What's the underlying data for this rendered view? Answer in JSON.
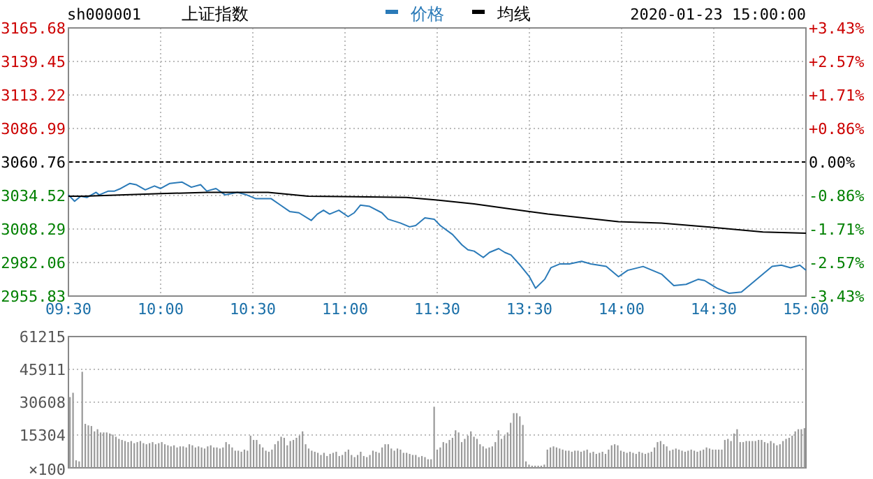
{
  "chart_data": [
    {
      "type": "line",
      "title": "上证指数",
      "annotations": [
        "sh000001",
        "2020-01-23 15:00:00"
      ],
      "categories": [
        "09:30",
        null,
        null,
        null,
        null,
        null,
        null,
        null,
        null,
        null,
        null,
        null,
        null,
        null,
        null,
        null,
        null,
        null,
        null,
        null,
        null,
        null,
        null,
        null,
        null,
        null,
        null,
        null,
        null,
        null,
        "10:00",
        null,
        null,
        null,
        null,
        null,
        null,
        null,
        null,
        null,
        null,
        null,
        null,
        null,
        null,
        null,
        null,
        null,
        null,
        null,
        null,
        null,
        null,
        null,
        null,
        null,
        null,
        null,
        null,
        null,
        "10:30",
        null,
        null,
        null,
        null,
        null,
        null,
        null,
        null,
        null,
        null,
        null,
        null,
        null,
        null,
        null,
        null,
        null,
        null,
        null,
        null,
        null,
        null,
        null,
        null,
        null,
        null,
        null,
        null,
        null,
        "11:00",
        null,
        null,
        null,
        null,
        null,
        null,
        null,
        null,
        null,
        null,
        null,
        null,
        null,
        null,
        null,
        null,
        null,
        null,
        null,
        null,
        null,
        null,
        null,
        null,
        null,
        null,
        null,
        null,
        null,
        "11:30",
        null,
        null,
        null,
        null,
        null,
        null,
        null,
        null,
        null,
        null,
        null,
        null,
        null,
        null,
        null,
        null,
        null,
        null,
        null,
        null,
        null,
        null,
        null,
        null,
        null,
        null,
        null,
        null,
        null,
        "13:30",
        null,
        null,
        null,
        null,
        null,
        null,
        null,
        null,
        null,
        null,
        null,
        null,
        null,
        null,
        null,
        null,
        null,
        null,
        null,
        null,
        null,
        null,
        null,
        null,
        null,
        null,
        null,
        null,
        null,
        "14:00",
        null,
        null,
        null,
        null,
        null,
        null,
        null,
        null,
        null,
        null,
        null,
        null,
        null,
        null,
        null,
        null,
        null,
        null,
        null,
        null,
        null,
        null,
        null,
        null,
        null,
        null,
        null,
        null,
        null,
        "14:30",
        null,
        null,
        null,
        null,
        null,
        null,
        null,
        null,
        null,
        null,
        null,
        null,
        null,
        null,
        null,
        null,
        null,
        null,
        null,
        null,
        null,
        null,
        null,
        null,
        null,
        null,
        null,
        null,
        null,
        "15:00"
      ],
      "ylim": [
        2955.83,
        3165.68
      ],
      "yticks": [
        2955.83,
        2982.06,
        3008.29,
        3034.52,
        3060.76,
        3086.99,
        3113.22,
        3139.45,
        3165.68
      ],
      "y2lim": [
        -3.43,
        3.43
      ],
      "y2ticks": [
        {
          "value": -3.43,
          "label": "-3.43%"
        },
        {
          "value": -2.57,
          "label": "-2.57%"
        },
        {
          "value": -1.71,
          "label": "-1.71%"
        },
        {
          "value": -0.86,
          "label": "-0.86%"
        },
        {
          "value": 0,
          "label": "0.00%"
        },
        {
          "value": 0.86,
          "label": "+0.86%"
        },
        {
          "value": 1.71,
          "label": "+1.71%"
        },
        {
          "value": 2.57,
          "label": "+2.57%"
        },
        {
          "value": 3.43,
          "label": "+3.43%"
        }
      ],
      "ref_lines": [
        {
          "axis": "y",
          "value": 3060.76,
          "color": "#000000",
          "line_style": "dashed"
        }
      ],
      "grid": true,
      "legend": "top",
      "series": [
        {
          "name": "价格",
          "color": "#2a7ab8",
          "values": [
            3035,
            null,
            3030,
            null,
            3034,
            null,
            3033,
            null,
            null,
            3037,
            3035,
            null,
            null,
            3038,
            null,
            3038,
            null,
            3040,
            null,
            null,
            3044,
            null,
            3043,
            null,
            null,
            3039,
            null,
            null,
            3042,
            null,
            3040,
            null,
            null,
            3044,
            null,
            null,
            null,
            3045,
            null,
            null,
            3041,
            null,
            null,
            3043,
            null,
            3038,
            null,
            null,
            3040,
            null,
            null,
            3035,
            null,
            null,
            null,
            3037,
            null,
            null,
            3035,
            null,
            null,
            3032,
            null,
            null,
            null,
            null,
            3032,
            null,
            null,
            3027,
            null,
            null,
            3022,
            null,
            null,
            3021,
            null,
            null,
            null,
            3015,
            null,
            3020,
            null,
            3023,
            null,
            3020,
            null,
            null,
            3023,
            null,
            null,
            3018,
            null,
            3021,
            null,
            3027,
            null,
            null,
            3026,
            null,
            null,
            null,
            3021,
            null,
            3016,
            null,
            null,
            null,
            3013,
            null,
            null,
            3010,
            null,
            3011,
            null,
            null,
            3017,
            null,
            null,
            3016,
            null,
            3011,
            null,
            null,
            null,
            3004,
            null,
            null,
            2996,
            null,
            2992,
            null,
            2991,
            null,
            null,
            2986,
            null,
            2990,
            null,
            null,
            2993,
            null,
            2990,
            null,
            2988,
            null,
            null,
            2980,
            null,
            null,
            2971,
            null,
            2962,
            null,
            null,
            2969,
            null,
            2978,
            null,
            null,
            2981,
            null,
            null,
            2981,
            null,
            null,
            null,
            2983,
            null,
            null,
            2981,
            null,
            null,
            null,
            null,
            2979,
            null,
            null,
            null,
            2971,
            null,
            null,
            2976,
            null,
            null,
            null,
            null,
            2979,
            null,
            null,
            2976,
            null,
            null,
            2973,
            null,
            null,
            null,
            2964,
            null,
            null,
            null,
            2965,
            null,
            null,
            null,
            2969,
            null,
            2968,
            null,
            null,
            null,
            2962,
            null,
            null,
            null,
            2958,
            null,
            null,
            null,
            2959,
            null,
            null,
            2965,
            null,
            null,
            null,
            2973,
            null,
            null,
            2979,
            null,
            null,
            2980,
            null,
            null,
            2978,
            null,
            null,
            2980,
            null,
            2976
          ]
        },
        {
          "name": "均线",
          "color": "#000000",
          "values": [
            3034,
            null,
            null,
            null,
            null,
            3034,
            null,
            null,
            null,
            null,
            null,
            null,
            null,
            null,
            null,
            null,
            null,
            null,
            null,
            null,
            null,
            null,
            null,
            null,
            null,
            null,
            null,
            null,
            null,
            null,
            3036,
            null,
            null,
            null,
            null,
            null,
            null,
            null,
            null,
            null,
            null,
            null,
            null,
            null,
            null,
            3037,
            null,
            null,
            null,
            null,
            null,
            null,
            null,
            null,
            null,
            null,
            null,
            null,
            null,
            null,
            null,
            null,
            null,
            null,
            null,
            3037,
            null,
            null,
            null,
            null,
            null,
            null,
            null,
            null,
            null,
            null,
            null,
            null,
            3034,
            null,
            null,
            null,
            null,
            null,
            null,
            null,
            null,
            null,
            null,
            null,
            null,
            null,
            null,
            null,
            null,
            null,
            null,
            null,
            null,
            null,
            null,
            null,
            null,
            null,
            null,
            null,
            null,
            null,
            null,
            null,
            3033,
            null,
            null,
            null,
            null,
            null,
            null,
            null,
            null,
            null,
            3031,
            null,
            null,
            null,
            null,
            null,
            null,
            null,
            null,
            null,
            null,
            null,
            3028,
            null,
            null,
            null,
            null,
            null,
            null,
            null,
            null,
            null,
            null,
            null,
            null,
            null,
            null,
            null,
            null,
            null,
            3022,
            null,
            null,
            null,
            null,
            null,
            3020,
            null,
            null,
            null,
            null,
            null,
            null,
            null,
            null,
            null,
            null,
            null,
            null,
            null,
            null,
            null,
            null,
            null,
            null,
            null,
            null,
            null,
            null,
            3014,
            null,
            null,
            null,
            null,
            null,
            null,
            null,
            null,
            null,
            null,
            null,
            null,
            null,
            3013,
            null,
            null,
            null,
            null,
            null,
            null,
            null,
            null,
            null,
            null,
            null,
            null,
            null,
            null,
            3010,
            null,
            null,
            null,
            null,
            null,
            null,
            null,
            null,
            null,
            null,
            null,
            null,
            null,
            null,
            null,
            null,
            null,
            3006,
            null,
            null,
            null,
            null,
            null,
            null,
            null,
            null,
            null,
            null,
            null,
            null,
            null,
            3005
          ]
        }
      ]
    },
    {
      "type": "bar",
      "color": "#999999",
      "ylabel": "×100",
      "categories": [
        null,
        null,
        null,
        null,
        null,
        null,
        null,
        null,
        null,
        null,
        null,
        null,
        null,
        null,
        null,
        null,
        null,
        null,
        null,
        null,
        null,
        null,
        null,
        null,
        null,
        null,
        null,
        null,
        null,
        null,
        null,
        null,
        null,
        null,
        null,
        null,
        null,
        null,
        null,
        null,
        null,
        null,
        null,
        null,
        null,
        null,
        null,
        null,
        null,
        null,
        null,
        null,
        null,
        null,
        null,
        null,
        null,
        null,
        null,
        null,
        null,
        null,
        null,
        null,
        null,
        null,
        null,
        null,
        null,
        null,
        null,
        null,
        null,
        null,
        null,
        null,
        null,
        null,
        null,
        null,
        null,
        null,
        null,
        null,
        null,
        null,
        null,
        null,
        null,
        null,
        null,
        null,
        null,
        null,
        null,
        null,
        null,
        null,
        null,
        null,
        null,
        null,
        null,
        null,
        null,
        null,
        null,
        null,
        null,
        null,
        null,
        null,
        null,
        null,
        null,
        null,
        null,
        null,
        null,
        null,
        null,
        null,
        null,
        null,
        null,
        null,
        null,
        null,
        null,
        null,
        null,
        null,
        null,
        null,
        null,
        null,
        null,
        null,
        null,
        null,
        null,
        null,
        null,
        null,
        null,
        null,
        null,
        null,
        null,
        null,
        null,
        null,
        null,
        null,
        null,
        null,
        null,
        null,
        null,
        null,
        null,
        null,
        null,
        null,
        null,
        null,
        null,
        null,
        null,
        null,
        null,
        null,
        null,
        null,
        null,
        null,
        null,
        null,
        null,
        null,
        null,
        null,
        null,
        null,
        null,
        null,
        null,
        null,
        null,
        null,
        null,
        null,
        null,
        null,
        null,
        null,
        null,
        null,
        null,
        null,
        null,
        null,
        null,
        null,
        null,
        null,
        null,
        null,
        null,
        null,
        null,
        null,
        null,
        null,
        null,
        null,
        null,
        null,
        null,
        null,
        null,
        null,
        null,
        null,
        null,
        null,
        null,
        null,
        null,
        null,
        null,
        null,
        null,
        null,
        null,
        null,
        null,
        null,
        null,
        null,
        null
      ],
      "ylim": [
        0,
        61215
      ],
      "yticks": [
        15304,
        30608,
        45911,
        61215
      ],
      "grid": "y",
      "tick_labels": "y",
      "values": [
        33000,
        35000,
        3500,
        3000,
        44800,
        20500,
        19800,
        19500,
        17000,
        18000,
        16500,
        16500,
        16500,
        16000,
        15500,
        14500,
        13500,
        13000,
        12500,
        12000,
        12500,
        11500,
        12000,
        12500,
        11500,
        11000,
        11500,
        12000,
        11000,
        11500,
        12000,
        11000,
        10500,
        10000,
        10500,
        9500,
        10000,
        10000,
        9500,
        11000,
        10500,
        9500,
        10000,
        9500,
        9000,
        10000,
        10500,
        9500,
        9500,
        9000,
        9500,
        12000,
        11000,
        9500,
        8000,
        8000,
        7500,
        8500,
        8000,
        15000,
        13000,
        13000,
        11000,
        9500,
        8000,
        7500,
        8500,
        11000,
        12500,
        14500,
        14000,
        10500,
        12500,
        13000,
        14000,
        15000,
        17000,
        11000,
        9000,
        8000,
        7500,
        7000,
        6000,
        7000,
        5500,
        6500,
        7000,
        7500,
        5500,
        6000,
        7500,
        8500,
        6000,
        5000,
        6000,
        7500,
        5500,
        5000,
        6000,
        8000,
        7500,
        7000,
        9500,
        11000,
        11000,
        9000,
        8000,
        9000,
        8500,
        7000,
        7000,
        6500,
        6000,
        6000,
        5000,
        5500,
        5000,
        4000,
        4000,
        28500,
        8500,
        9500,
        12000,
        11500,
        13000,
        14000,
        17500,
        16500,
        12000,
        13500,
        15000,
        17000,
        14500,
        13500,
        11000,
        10000,
        9000,
        9500,
        10000,
        12000,
        17500,
        13500,
        15000,
        16500,
        21000,
        25500,
        25500,
        24000,
        20000,
        3000,
        1500,
        1000,
        1000,
        1000,
        1000,
        1500,
        8500,
        9500,
        10000,
        9500,
        9000,
        8500,
        8000,
        8000,
        7500,
        8000,
        8000,
        7500,
        8000,
        8500,
        7000,
        7500,
        6500,
        7000,
        7500,
        6500,
        8500,
        10500,
        11000,
        10500,
        8000,
        7500,
        7000,
        7500,
        7000,
        6500,
        7500,
        7000,
        6500,
        7000,
        7500,
        9500,
        12000,
        12500,
        11000,
        10000,
        8000,
        8500,
        9000,
        8500,
        8000,
        7500,
        8000,
        8500,
        8000,
        7500,
        8000,
        8500,
        9500,
        9000,
        8500,
        8500,
        8500,
        8500,
        13000,
        13500,
        12500,
        16000,
        18000,
        12000,
        12000,
        12500,
        12500,
        12500,
        12500,
        13000,
        13000,
        12000,
        11500,
        12500,
        11500,
        10500,
        11000,
        12500,
        13500,
        14000,
        15000,
        17000,
        18000,
        18000,
        18500
      ]
    }
  ]
}
